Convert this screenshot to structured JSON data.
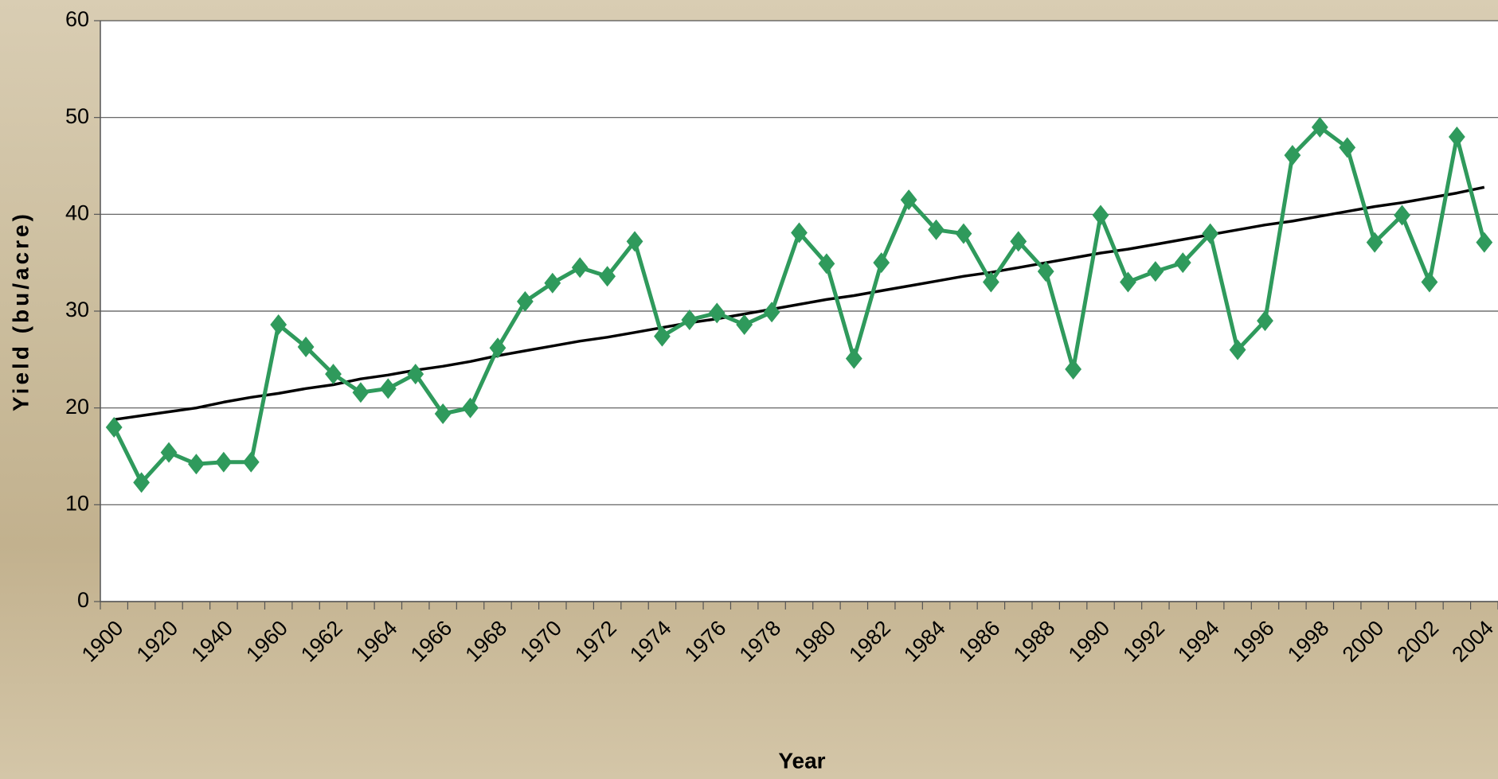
{
  "chart_data": {
    "type": "line",
    "x_label": "Year",
    "y_label": "Yield (bu/acre)",
    "categories": [
      "1900",
      null,
      "1920",
      null,
      "1940",
      null,
      "1960",
      null,
      "1962",
      null,
      "1964",
      null,
      "1966",
      null,
      "1968",
      null,
      "1970",
      null,
      "1972",
      null,
      "1974",
      null,
      "1976",
      null,
      "1978",
      null,
      "1980",
      null,
      "1982",
      null,
      "1984",
      null,
      "1986",
      null,
      "1988",
      null,
      "1990",
      null,
      "1992",
      null,
      "1994",
      null,
      "1996",
      null,
      "1998",
      null,
      "2000",
      null,
      "2002",
      null,
      "2004"
    ],
    "series": [
      {
        "color": "#2f9a5c",
        "marker": "diamond",
        "values": [
          18,
          12.3,
          15.4,
          14.2,
          14.4,
          14.4,
          28.6,
          26.3,
          23.5,
          21.6,
          22.0,
          23.5,
          19.4,
          20.0,
          26.2,
          31.0,
          32.9,
          34.5,
          33.6,
          37.2,
          27.4,
          29.1,
          29.8,
          28.6,
          29.9,
          38.1,
          34.9,
          25.1,
          35.0,
          41.5,
          38.4,
          38.0,
          33.0,
          37.2,
          34.1,
          24.0,
          39.9,
          33.0,
          34.1,
          35.0,
          38.0,
          26.0,
          29.0,
          46.1,
          49.0,
          46.9,
          37.1,
          39.9,
          33.0,
          48.0,
          37.1
        ]
      },
      {
        "color": "#000000",
        "marker": "none",
        "values": [
          18.8,
          19.2,
          19.6,
          20.0,
          20.6,
          21.1,
          21.5,
          22.0,
          22.4,
          23.0,
          23.4,
          23.9,
          24.3,
          24.8,
          25.4,
          25.9,
          26.4,
          26.9,
          27.3,
          27.8,
          28.3,
          28.8,
          29.2,
          29.7,
          30.2,
          30.7,
          31.2,
          31.6,
          32.1,
          32.6,
          33.1,
          33.6,
          34.0,
          34.5,
          35.0,
          35.5,
          36.0,
          36.4,
          36.9,
          37.4,
          37.9,
          38.4,
          38.9,
          39.3,
          39.8,
          40.3,
          40.8,
          41.2,
          41.7,
          42.2,
          42.8
        ]
      }
    ],
    "ylim": [
      0,
      60
    ],
    "yticks": [
      0,
      10,
      20,
      30,
      40,
      50,
      60
    ],
    "grid": true
  }
}
